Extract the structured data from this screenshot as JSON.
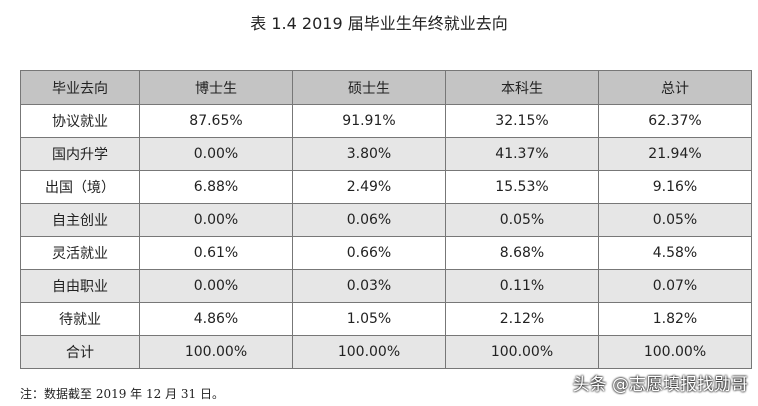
{
  "header": {
    "title": "表 1.4  2019 届毕业生年终就业去向"
  },
  "table": {
    "columns": [
      "毕业去向",
      "博士生",
      "硕士生",
      "本科生",
      "总计"
    ],
    "rows": [
      [
        "协议就业",
        "87.65%",
        "91.91%",
        "32.15%",
        "62.37%"
      ],
      [
        "国内升学",
        "0.00%",
        "3.80%",
        "41.37%",
        "21.94%"
      ],
      [
        "出国（境）",
        "6.88%",
        "2.49%",
        "15.53%",
        "9.16%"
      ],
      [
        "自主创业",
        "0.00%",
        "0.06%",
        "0.05%",
        "0.05%"
      ],
      [
        "灵活就业",
        "0.61%",
        "0.66%",
        "8.68%",
        "4.58%"
      ],
      [
        "自由职业",
        "0.00%",
        "0.03%",
        "0.11%",
        "0.07%"
      ],
      [
        "待就业",
        "4.86%",
        "1.05%",
        "2.12%",
        "1.82%"
      ],
      [
        "合计",
        "100.00%",
        "100.00%",
        "100.00%",
        "100.00%"
      ]
    ]
  },
  "note": "注：数据截至 2019 年 12 月 31 日。",
  "watermark": "头条 @志愿填报找勋哥"
}
